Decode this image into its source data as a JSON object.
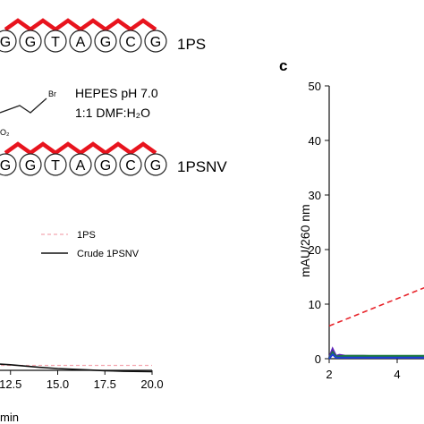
{
  "scheme": {
    "seq_top": [
      "G",
      "G",
      "T",
      "A",
      "G",
      "C",
      "G"
    ],
    "seq_bottom": [
      "G",
      "G",
      "T",
      "A",
      "G",
      "C",
      "G"
    ],
    "label_top": "1PS",
    "label_bottom": "1PSNV",
    "reagent_br": "Br",
    "reagent_o2": "O₂",
    "condition_1": "HEPES pH 7.0",
    "condition_2": "1:1 DMF:H₂O",
    "backbone_color": "#e8141e"
  },
  "chart_data": [
    {
      "type": "line",
      "panel": "left",
      "x_ticks": [
        "12.5",
        "15.0",
        "17.5",
        "20.0"
      ],
      "xlabel_partial": "min",
      "series": [
        {
          "name": "1PS",
          "color": "#f4a7b0",
          "dash": true,
          "x": [
            10.0,
            20.0
          ],
          "y": [
            0.5,
            0.5
          ]
        },
        {
          "name": "Crude 1PSNV",
          "color": "#111111",
          "dash": false,
          "x": [
            10.0,
            11.0,
            12.5,
            14.0,
            15.0,
            16.5,
            17.5,
            18.5,
            20.0
          ],
          "y": [
            0.6,
            0.9,
            0.6,
            0.2,
            0.0,
            -0.2,
            -0.35,
            -0.45,
            -0.5
          ]
        }
      ]
    },
    {
      "type": "line",
      "panel": "c",
      "panel_label": "c",
      "ylabel": "mAU/260 nm",
      "ylim": [
        0,
        50
      ],
      "y_ticks": [
        0,
        10,
        20,
        30,
        40,
        50
      ],
      "x_ticks": [
        2,
        4
      ],
      "series": [
        {
          "color": "#e8242b",
          "dash": true,
          "x": [
            2.0,
            5.0
          ],
          "y": [
            6.0,
            13.5
          ]
        },
        {
          "color": "#5b21b6",
          "dash": false,
          "x": [
            2.0,
            2.1,
            2.2,
            2.3,
            2.5,
            3.0,
            3.5,
            4.0,
            4.5,
            5.0
          ],
          "y": [
            0.2,
            1.8,
            0.5,
            0.7,
            0.5,
            0.5,
            0.4,
            0.4,
            0.4,
            0.4
          ]
        },
        {
          "color": "#1a7a3a",
          "dash": false,
          "x": [
            2.0,
            2.1,
            2.2,
            2.5,
            3.0,
            4.0,
            5.0
          ],
          "y": [
            0.1,
            1.2,
            0.4,
            0.5,
            0.5,
            0.5,
            0.5
          ]
        },
        {
          "color": "#1f3fd6",
          "dash": false,
          "x": [
            2.0,
            2.1,
            2.2,
            2.5,
            3.0,
            4.0,
            5.0
          ],
          "y": [
            0.0,
            0.8,
            0.2,
            0.2,
            0.2,
            0.2,
            0.2
          ]
        }
      ]
    }
  ]
}
